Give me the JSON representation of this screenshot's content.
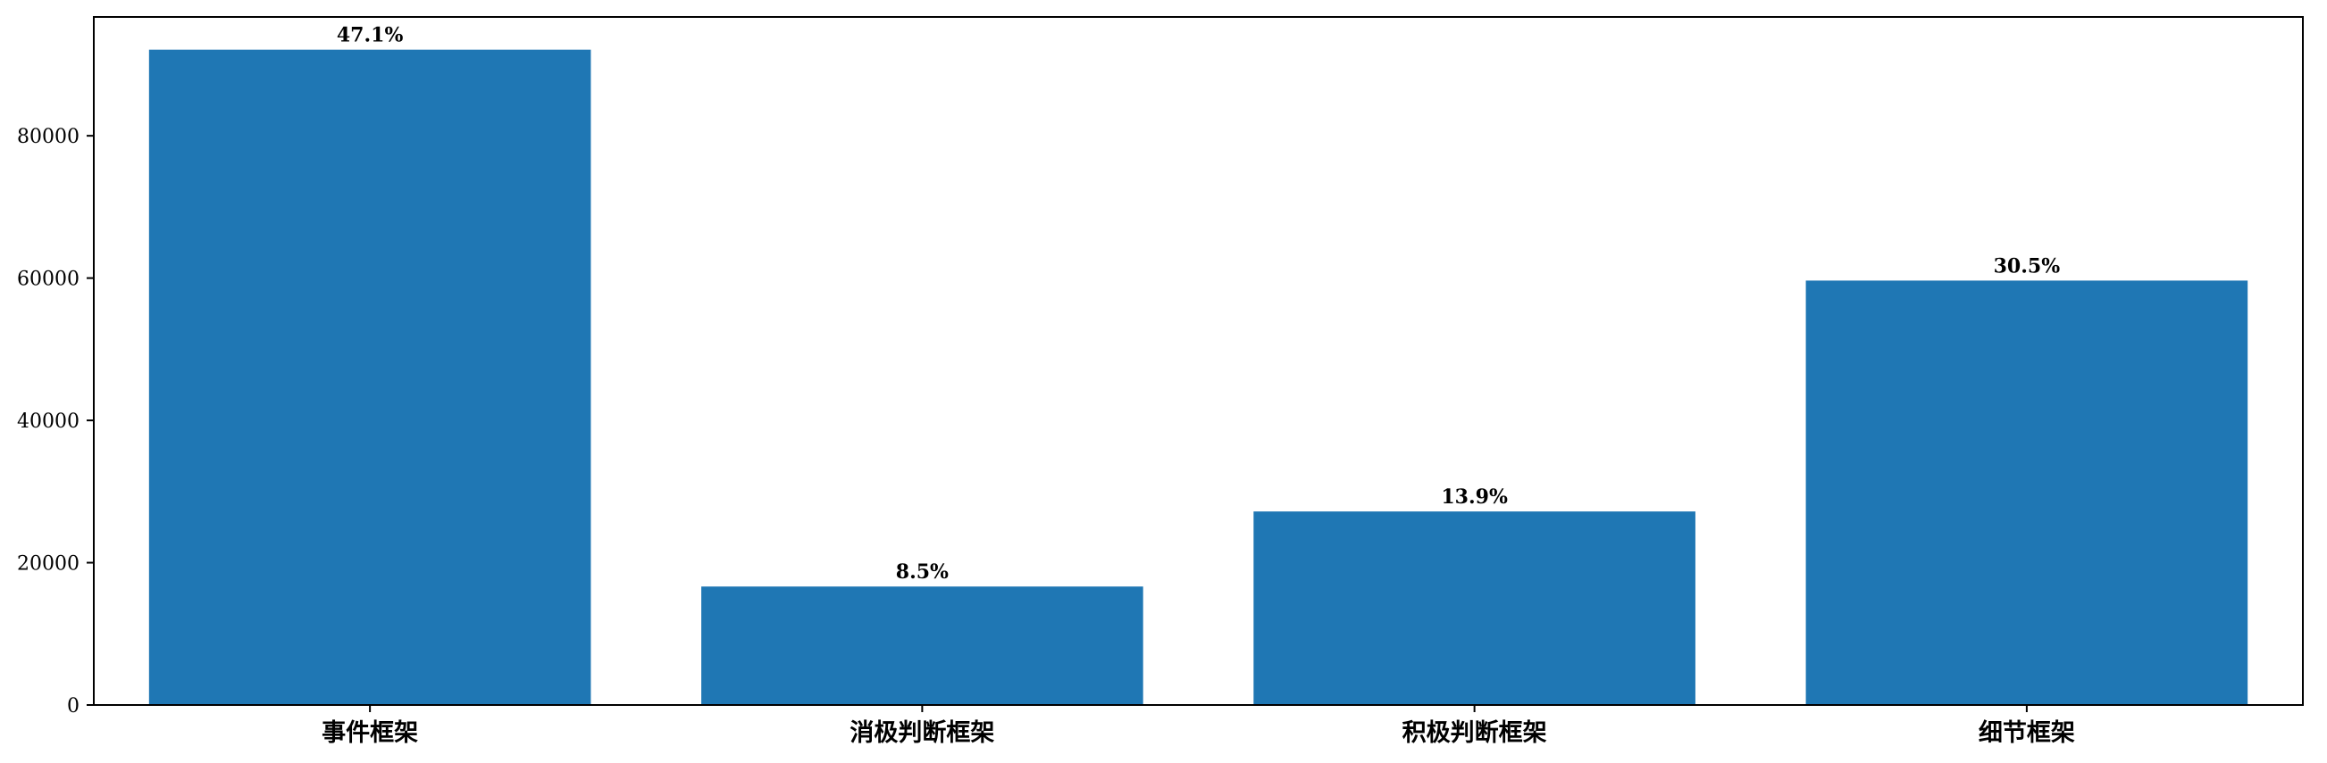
{
  "chart_data": {
    "type": "bar",
    "title": "",
    "xlabel": "",
    "ylabel": "",
    "categories": [
      "事件框架",
      "消极判断框架",
      "积极判断框架",
      "细节框架"
    ],
    "values": [
      92100,
      16650,
      27200,
      59650
    ],
    "data_labels": [
      "47.1%",
      "8.5%",
      "13.9%",
      "30.5%"
    ],
    "ylim": [
      0,
      96700
    ],
    "yticks": [
      0,
      20000,
      40000,
      60000,
      80000
    ],
    "ytick_labels": [
      "0",
      "20000",
      "40000",
      "60000",
      "80000"
    ],
    "bar_color": "#1f77b4",
    "grid": false,
    "legend": "none"
  }
}
